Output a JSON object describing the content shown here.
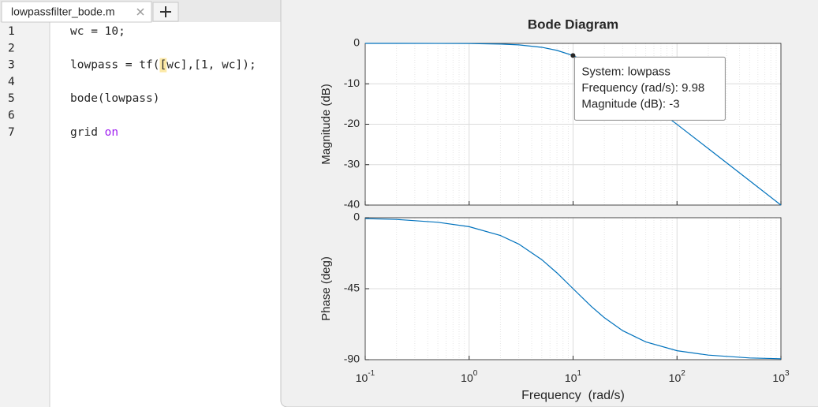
{
  "editor": {
    "tab": "lowpassfilter_bode.m",
    "lines": [
      {
        "number": 1,
        "parts": [
          {
            "text": "wc = 10;"
          }
        ]
      },
      {
        "number": 2,
        "parts": []
      },
      {
        "number": 3,
        "parts": [
          {
            "text": "lowpass = tf("
          },
          {
            "text": "[",
            "style": "match"
          },
          {
            "text": "wc],[1, wc]);"
          }
        ]
      },
      {
        "number": 4,
        "parts": []
      },
      {
        "number": 5,
        "parts": [
          {
            "text": "bode(lowpass)"
          }
        ]
      },
      {
        "number": 6,
        "parts": []
      },
      {
        "number": 7,
        "parts": [
          {
            "text": "grid "
          },
          {
            "text": "on",
            "style": "keyword"
          }
        ]
      }
    ]
  },
  "chart_data": [
    {
      "type": "line",
      "title": "Bode Diagram",
      "ylabel": "Magnitude (dB)",
      "x": [
        0.1,
        0.2,
        0.5,
        1,
        2,
        3,
        5,
        7,
        10,
        15,
        20,
        30,
        50,
        100,
        200,
        500,
        1000
      ],
      "values": [
        0,
        0,
        -0.01,
        -0.04,
        -0.17,
        -0.37,
        -0.97,
        -1.73,
        -3.01,
        -5.12,
        -6.99,
        -10,
        -14.15,
        -20.04,
        -26.03,
        -33.98,
        -40
      ],
      "color": "#0072bd",
      "xscale": "log",
      "xlim": [
        0.1,
        1000
      ],
      "xticks": [
        0.1,
        1,
        10,
        100,
        1000
      ],
      "ylim": [
        -40,
        0
      ],
      "yticks": [
        0,
        -10,
        -20,
        -30,
        -40
      ],
      "grid": true,
      "minor_grid": true,
      "datatip": {
        "x": 9.98,
        "y": -3,
        "lines": [
          "System: lowpass",
          "Frequency (rad/s): 9.98",
          "Magnitude (dB): -3"
        ]
      }
    },
    {
      "type": "line",
      "ylabel": "Phase (deg)",
      "xlabel": "Frequency  (rad/s)",
      "x": [
        0.1,
        0.2,
        0.5,
        1,
        2,
        3,
        5,
        7,
        10,
        15,
        20,
        30,
        50,
        100,
        200,
        500,
        1000
      ],
      "values": [
        -0.6,
        -1.1,
        -2.9,
        -5.7,
        -11.3,
        -16.7,
        -26.6,
        -35,
        -45,
        -56.3,
        -63.4,
        -71.6,
        -78.7,
        -84.3,
        -87.1,
        -88.9,
        -89.4
      ],
      "color": "#0072bd",
      "xscale": "log",
      "xlim": [
        0.1,
        1000
      ],
      "xticks": [
        {
          "value": 0.1,
          "label": "10",
          "exponent": "-1"
        },
        {
          "value": 1,
          "label": "10",
          "exponent": "0"
        },
        {
          "value": 10,
          "label": "10",
          "exponent": "1"
        },
        {
          "value": 100,
          "label": "10",
          "exponent": "2"
        },
        {
          "value": 1000,
          "label": "10",
          "exponent": "3"
        }
      ],
      "ylim": [
        -90,
        0
      ],
      "yticks": [
        0,
        -45,
        -90
      ],
      "grid": true,
      "minor_grid": true
    }
  ]
}
